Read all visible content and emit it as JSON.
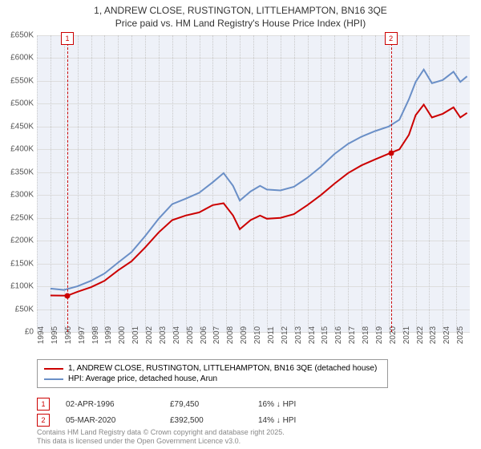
{
  "title_line1": "1, ANDREW CLOSE, RUSTINGTON, LITTLEHAMPTON, BN16 3QE",
  "title_line2": "Price paid vs. HM Land Registry's House Price Index (HPI)",
  "chart": {
    "type": "line",
    "background_color": "#eef1f8",
    "grid_color": "#dddddd",
    "grid_dot_color": "#c8c8c8",
    "ylim": [
      0,
      650000
    ],
    "ytick_step": 50000,
    "yticks": [
      "£0",
      "£50K",
      "£100K",
      "£150K",
      "£200K",
      "£250K",
      "£300K",
      "£350K",
      "£400K",
      "£450K",
      "£500K",
      "£550K",
      "£600K",
      "£650K"
    ],
    "xlim": [
      1994,
      2026
    ],
    "xticks": [
      1994,
      1995,
      1996,
      1997,
      1998,
      1999,
      2000,
      2001,
      2002,
      2003,
      2004,
      2005,
      2006,
      2007,
      2008,
      2009,
      2010,
      2011,
      2012,
      2013,
      2014,
      2015,
      2016,
      2017,
      2018,
      2019,
      2020,
      2021,
      2022,
      2023,
      2024,
      2025
    ],
    "series": [
      {
        "name": "property",
        "label": "1, ANDREW CLOSE, RUSTINGTON, LITTLEHAMPTON, BN16 3QE (detached house)",
        "color": "#cc0000",
        "width": 2,
        "data": [
          [
            1995.0,
            80000
          ],
          [
            1996.25,
            79450
          ],
          [
            1997.0,
            88000
          ],
          [
            1998.0,
            98000
          ],
          [
            1999.0,
            112000
          ],
          [
            2000.0,
            135000
          ],
          [
            2001.0,
            155000
          ],
          [
            2002.0,
            185000
          ],
          [
            2003.0,
            218000
          ],
          [
            2004.0,
            245000
          ],
          [
            2005.0,
            255000
          ],
          [
            2006.0,
            262000
          ],
          [
            2007.0,
            278000
          ],
          [
            2007.8,
            282000
          ],
          [
            2008.5,
            255000
          ],
          [
            2009.0,
            225000
          ],
          [
            2009.8,
            245000
          ],
          [
            2010.5,
            255000
          ],
          [
            2011.0,
            248000
          ],
          [
            2012.0,
            250000
          ],
          [
            2013.0,
            258000
          ],
          [
            2014.0,
            278000
          ],
          [
            2015.0,
            300000
          ],
          [
            2016.0,
            325000
          ],
          [
            2017.0,
            348000
          ],
          [
            2018.0,
            365000
          ],
          [
            2019.0,
            378000
          ],
          [
            2020.17,
            392500
          ],
          [
            2020.8,
            400000
          ],
          [
            2021.5,
            432000
          ],
          [
            2022.0,
            475000
          ],
          [
            2022.6,
            498000
          ],
          [
            2023.2,
            470000
          ],
          [
            2024.0,
            478000
          ],
          [
            2024.8,
            492000
          ],
          [
            2025.3,
            470000
          ],
          [
            2025.8,
            480000
          ]
        ]
      },
      {
        "name": "hpi",
        "label": "HPI: Average price, detached house, Arun",
        "color": "#6a8fc7",
        "width": 2,
        "data": [
          [
            1995.0,
            95000
          ],
          [
            1996.0,
            92000
          ],
          [
            1997.0,
            100000
          ],
          [
            1998.0,
            112000
          ],
          [
            1999.0,
            128000
          ],
          [
            2000.0,
            152000
          ],
          [
            2001.0,
            175000
          ],
          [
            2002.0,
            210000
          ],
          [
            2003.0,
            248000
          ],
          [
            2004.0,
            280000
          ],
          [
            2005.0,
            292000
          ],
          [
            2006.0,
            305000
          ],
          [
            2007.0,
            328000
          ],
          [
            2007.8,
            348000
          ],
          [
            2008.5,
            320000
          ],
          [
            2009.0,
            288000
          ],
          [
            2009.8,
            308000
          ],
          [
            2010.5,
            320000
          ],
          [
            2011.0,
            312000
          ],
          [
            2012.0,
            310000
          ],
          [
            2013.0,
            318000
          ],
          [
            2014.0,
            338000
          ],
          [
            2015.0,
            362000
          ],
          [
            2016.0,
            390000
          ],
          [
            2017.0,
            412000
          ],
          [
            2018.0,
            428000
          ],
          [
            2019.0,
            440000
          ],
          [
            2020.0,
            450000
          ],
          [
            2020.8,
            465000
          ],
          [
            2021.5,
            510000
          ],
          [
            2022.0,
            548000
          ],
          [
            2022.6,
            575000
          ],
          [
            2023.2,
            545000
          ],
          [
            2024.0,
            552000
          ],
          [
            2024.8,
            570000
          ],
          [
            2025.3,
            548000
          ],
          [
            2025.8,
            560000
          ]
        ]
      }
    ],
    "markers": [
      {
        "n": "1",
        "x": 1996.25,
        "y": 79450,
        "color": "#cc0000"
      },
      {
        "n": "2",
        "x": 2020.17,
        "y": 392500,
        "color": "#cc0000"
      }
    ]
  },
  "legend": {
    "items": [
      {
        "label": "1, ANDREW CLOSE, RUSTINGTON, LITTLEHAMPTON, BN16 3QE (detached house)",
        "color": "#cc0000"
      },
      {
        "label": "HPI: Average price, detached house, Arun",
        "color": "#6a8fc7"
      }
    ]
  },
  "sales": [
    {
      "n": "1",
      "date": "02-APR-1996",
      "price": "£79,450",
      "delta": "16% ↓ HPI",
      "color": "#cc0000"
    },
    {
      "n": "2",
      "date": "05-MAR-2020",
      "price": "£392,500",
      "delta": "14% ↓ HPI",
      "color": "#cc0000"
    }
  ],
  "footer_line1": "Contains HM Land Registry data © Crown copyright and database right 2025.",
  "footer_line2": "This data is licensed under the Open Government Licence v3.0."
}
